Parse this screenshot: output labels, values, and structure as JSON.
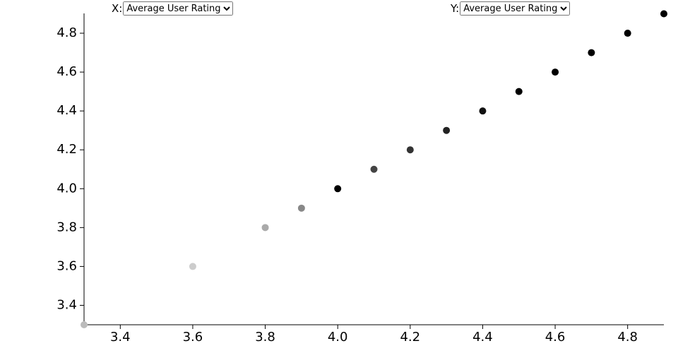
{
  "controls": {
    "x_label": "X:",
    "x_option": "Average User Rating",
    "y_label": "Y:",
    "y_option": "Average User Rating"
  },
  "chart_data": {
    "type": "scatter",
    "x": [
      3.3,
      3.6,
      3.8,
      3.9,
      4.0,
      4.1,
      4.2,
      4.3,
      4.4,
      4.5,
      4.6,
      4.7,
      4.8,
      4.9
    ],
    "values": [
      3.3,
      3.6,
      3.8,
      3.9,
      4.0,
      4.1,
      4.2,
      4.3,
      4.4,
      4.5,
      4.6,
      4.7,
      4.8,
      4.9
    ],
    "colors": [
      "#bbbbbb",
      "#cccccc",
      "#aaaaaa",
      "#888888",
      "#000000",
      "#444444",
      "#333333",
      "#222222",
      "#111111",
      "#000000",
      "#000000",
      "#000000",
      "#000000",
      "#000000"
    ],
    "xlim": [
      3.3,
      4.9
    ],
    "ylim": [
      3.3,
      4.9
    ],
    "xticks": [
      3.4,
      3.6,
      3.8,
      {
        "value": 4.0,
        "label": "4.0"
      },
      4.2,
      4.4,
      4.6,
      4.8
    ],
    "yticks": [
      3.4,
      3.6,
      3.8,
      {
        "value": 4.0,
        "label": "4.0"
      },
      4.2,
      4.4,
      4.6,
      4.8
    ]
  }
}
